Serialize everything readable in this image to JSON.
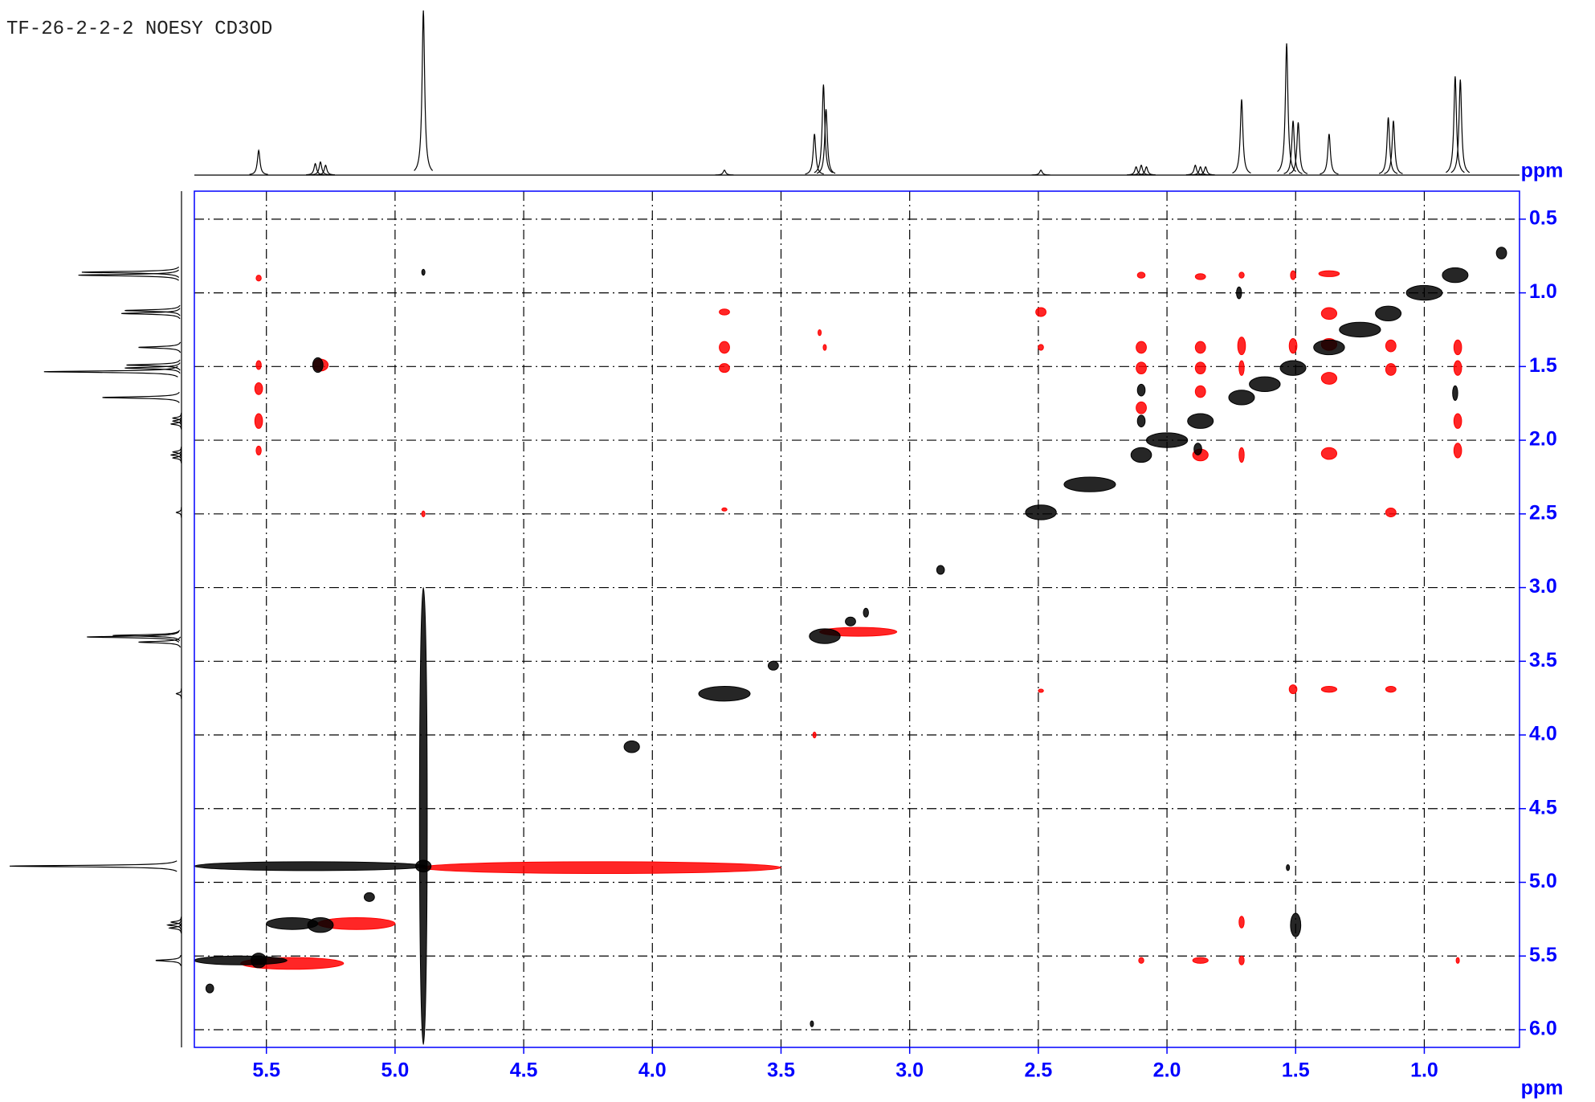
{
  "chart_data": {
    "type": "noesy",
    "title": "TF-26-2-2-2 NOESY CD3OD",
    "xlabel": "ppm",
    "ylabel": "ppm",
    "axis_color": "#0000ff",
    "grid": true,
    "xlim": [
      5.78,
      0.63
    ],
    "ylim": [
      0.31,
      6.12
    ],
    "xticks": [
      5.5,
      {
        "value": 5,
        "label": "5.0"
      },
      4.5,
      {
        "value": 4,
        "label": "4.0"
      },
      3.5,
      {
        "value": 3,
        "label": "3.0"
      },
      2.5,
      {
        "value": 2,
        "label": "2.0"
      },
      1.5,
      {
        "value": 1,
        "label": "1.0"
      }
    ],
    "yticks": [
      0.5,
      {
        "value": 1,
        "label": "1.0"
      },
      1.5,
      {
        "value": 2,
        "label": "2.0"
      },
      2.5,
      {
        "value": 3,
        "label": "3.0"
      },
      3.5,
      {
        "value": 4,
        "label": "4.0"
      },
      4.5,
      {
        "value": 5,
        "label": "5.0"
      },
      5.5,
      {
        "value": 6,
        "label": "6.0"
      }
    ],
    "projection": {
      "color": "#000000",
      "x": [
        5.53,
        5.31,
        5.29,
        5.27,
        4.89,
        3.72,
        3.37,
        3.335,
        3.325,
        2.49,
        2.12,
        2.1,
        2.08,
        1.89,
        1.87,
        1.85,
        1.71,
        1.535,
        1.51,
        1.49,
        1.37,
        1.14,
        1.12,
        0.88,
        0.86
      ],
      "heights": [
        0.15,
        0.07,
        0.08,
        0.06,
        1.0,
        0.03,
        0.25,
        0.55,
        0.4,
        0.03,
        0.05,
        0.06,
        0.05,
        0.06,
        0.05,
        0.05,
        0.46,
        0.8,
        0.33,
        0.32,
        0.25,
        0.35,
        0.33,
        0.6,
        0.58
      ]
    },
    "positive_peaks": {
      "color": "#000000",
      "x": [
        0.88,
        1.0,
        1.14,
        1.25,
        1.37,
        1.51,
        1.62,
        1.71,
        1.87,
        2.0,
        2.1,
        2.3,
        2.49,
        2.88,
        3.17,
        3.23,
        3.33,
        3.53,
        3.72,
        4.08,
        4.89,
        4.89,
        5.33,
        5.29,
        5.4,
        5.1,
        5.53,
        5.6,
        5.72,
        0.7,
        5.3,
        1.5,
        0.88,
        1.72,
        2.1,
        2.1,
        1.88,
        4.89,
        3.38,
        1.53
      ],
      "y": [
        0.88,
        1.0,
        1.14,
        1.25,
        1.37,
        1.51,
        1.62,
        1.71,
        1.87,
        2.0,
        2.1,
        2.3,
        2.49,
        2.88,
        3.17,
        3.23,
        3.33,
        3.53,
        3.72,
        4.08,
        4.89,
        4.55,
        4.89,
        5.29,
        5.28,
        5.1,
        5.53,
        5.53,
        5.72,
        0.73,
        1.49,
        5.29,
        1.68,
        1.0,
        1.66,
        1.87,
        2.06,
        0.86,
        5.96,
        4.9
      ],
      "dx": [
        0.05,
        0.07,
        0.05,
        0.08,
        0.06,
        0.05,
        0.06,
        0.05,
        0.05,
        0.08,
        0.04,
        0.1,
        0.06,
        0.015,
        0.01,
        0.02,
        0.06,
        0.02,
        0.1,
        0.03,
        0.03,
        0.015,
        0.45,
        0.05,
        0.1,
        0.02,
        0.03,
        0.18,
        0.015,
        0.02,
        0.02,
        0.02,
        0.01,
        0.01,
        0.015,
        0.015,
        0.015,
        0.005,
        0.005,
        0.005
      ],
      "dy": [
        0.05,
        0.05,
        0.05,
        0.05,
        0.05,
        0.05,
        0.05,
        0.05,
        0.05,
        0.05,
        0.05,
        0.05,
        0.05,
        0.03,
        0.03,
        0.03,
        0.05,
        0.03,
        0.05,
        0.04,
        0.04,
        1.55,
        0.03,
        0.05,
        0.04,
        0.03,
        0.05,
        0.03,
        0.03,
        0.04,
        0.05,
        0.08,
        0.05,
        0.04,
        0.04,
        0.04,
        0.04,
        0.02,
        0.02,
        0.02
      ]
    },
    "negative_peaks": {
      "color": "#ff0000",
      "x": [
        5.53,
        5.53,
        5.53,
        5.53,
        5.53,
        3.72,
        3.72,
        3.72,
        3.72,
        2.49,
        2.49,
        2.1,
        2.1,
        2.1,
        2.1,
        2.1,
        1.87,
        1.87,
        1.87,
        1.87,
        1.87,
        1.87,
        1.71,
        1.71,
        1.71,
        1.71,
        1.71,
        1.71,
        1.51,
        1.51,
        1.51,
        1.37,
        1.37,
        1.37,
        1.37,
        1.37,
        1.37,
        1.13,
        1.13,
        1.13,
        1.13,
        0.87,
        0.87,
        0.87,
        0.87,
        0.87,
        3.35,
        3.33,
        3.37,
        2.49,
        4.89,
        5.29,
        4.2,
        5.4,
        5.15,
        3.2
      ],
      "y": [
        0.9,
        1.49,
        1.65,
        1.87,
        2.07,
        1.13,
        1.37,
        1.51,
        2.47,
        1.13,
        1.37,
        0.88,
        1.37,
        1.51,
        1.78,
        5.53,
        0.89,
        1.37,
        1.51,
        1.67,
        2.1,
        5.53,
        0.88,
        1.36,
        1.51,
        2.1,
        5.27,
        5.53,
        0.88,
        1.36,
        3.69,
        0.87,
        1.14,
        1.35,
        1.58,
        2.09,
        3.69,
        1.36,
        1.52,
        2.49,
        3.69,
        1.37,
        1.51,
        1.87,
        2.07,
        5.53,
        1.27,
        1.37,
        4.0,
        3.7,
        2.5,
        1.49,
        4.9,
        5.55,
        5.28,
        3.3
      ],
      "dx": [
        0.01,
        0.01,
        0.015,
        0.015,
        0.01,
        0.02,
        0.02,
        0.02,
        0.01,
        0.02,
        0.01,
        0.015,
        0.02,
        0.02,
        0.02,
        0.01,
        0.02,
        0.02,
        0.02,
        0.02,
        0.03,
        0.03,
        0.01,
        0.015,
        0.01,
        0.01,
        0.01,
        0.01,
        0.01,
        0.015,
        0.015,
        0.04,
        0.03,
        0.03,
        0.03,
        0.03,
        0.03,
        0.02,
        0.02,
        0.02,
        0.02,
        0.015,
        0.015,
        0.015,
        0.015,
        0.005,
        0.005,
        0.005,
        0.005,
        0.01,
        0.005,
        0.03,
        0.7,
        0.2,
        0.15,
        0.15
      ],
      "dy": [
        0.02,
        0.03,
        0.04,
        0.05,
        0.03,
        0.02,
        0.04,
        0.03,
        0.01,
        0.03,
        0.02,
        0.02,
        0.04,
        0.04,
        0.04,
        0.02,
        0.02,
        0.04,
        0.04,
        0.04,
        0.04,
        0.02,
        0.02,
        0.06,
        0.05,
        0.05,
        0.04,
        0.03,
        0.03,
        0.05,
        0.03,
        0.02,
        0.04,
        0.04,
        0.04,
        0.04,
        0.02,
        0.04,
        0.04,
        0.03,
        0.02,
        0.05,
        0.05,
        0.05,
        0.05,
        0.02,
        0.02,
        0.02,
        0.02,
        0.01,
        0.02,
        0.04,
        0.04,
        0.04,
        0.04,
        0.03
      ]
    }
  }
}
